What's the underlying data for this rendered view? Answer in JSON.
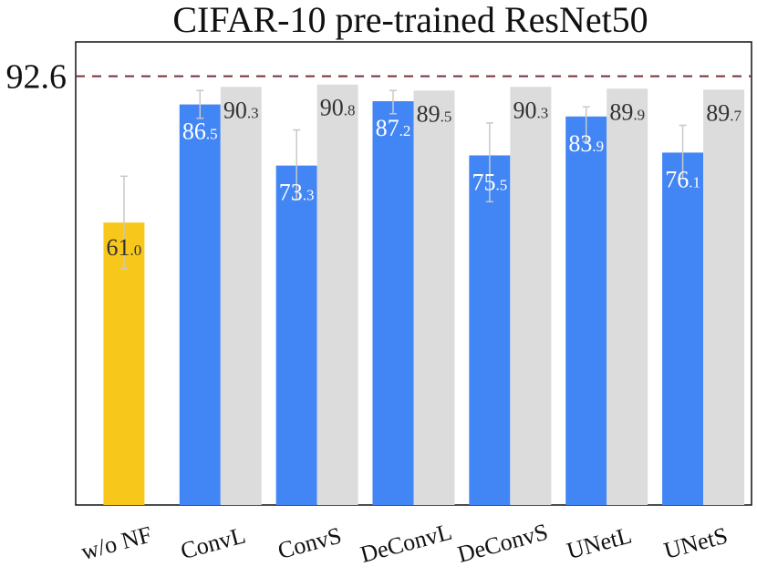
{
  "chart_data": {
    "type": "bar",
    "title": "CIFAR-10 pre-trained ResNet50",
    "xlabel": "",
    "ylabel": "",
    "ylim": [
      0,
      100
    ],
    "categories": [
      "w/o NF",
      "ConvL",
      "ConvS",
      "DeConvL",
      "DeConvS",
      "UNetL",
      "UNetS"
    ],
    "series": [
      {
        "role": "primary",
        "values": [
          61.0,
          86.5,
          73.3,
          87.2,
          75.5,
          83.9,
          76.1
        ],
        "labels": [
          [
            "61",
            ".0"
          ],
          [
            "86",
            ".5"
          ],
          [
            "73",
            ".3"
          ],
          [
            "87",
            ".2"
          ],
          [
            "75",
            ".5"
          ],
          [
            "83",
            ".9"
          ],
          [
            "76",
            ".1"
          ]
        ],
        "error_low": [
          51.0,
          83.5,
          66.0,
          84.5,
          65.5,
          78.5,
          70.5
        ],
        "error_high": [
          71.0,
          89.5,
          81.0,
          89.5,
          82.5,
          86.0,
          82.0
        ],
        "colors": [
          "#f8c71b",
          "#4286f5",
          "#4286f5",
          "#4286f5",
          "#4286f5",
          "#4286f5",
          "#4286f5"
        ]
      },
      {
        "role": "secondary",
        "values": [
          null,
          90.3,
          90.8,
          89.5,
          90.3,
          89.9,
          89.7
        ],
        "labels": [
          null,
          [
            "90",
            ".3"
          ],
          [
            "90",
            ".8"
          ],
          [
            "89",
            ".5"
          ],
          [
            "90",
            ".3"
          ],
          [
            "89",
            ".9"
          ],
          [
            "89",
            ".7"
          ]
        ],
        "color": "#dcdcdc"
      }
    ],
    "reference_line": {
      "value": 92.6,
      "label": "92.6",
      "style": "dashed",
      "color": "#7a2e3a"
    },
    "grid": false,
    "legend": "none"
  }
}
